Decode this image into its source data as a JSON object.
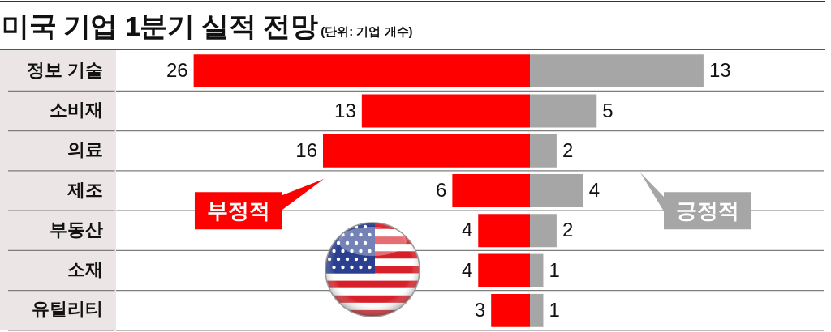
{
  "chart_data": [
    {
      "type": "bar",
      "orientation": "horizontal",
      "title": "미국 기업 1분기 실적 전망",
      "subtitle": "(단위: 기업 개수)",
      "categories": [
        "정보 기술",
        "소비재",
        "의료",
        "제조",
        "부동산",
        "소재",
        "유틸리티"
      ],
      "series": [
        {
          "name": "부정적",
          "color": "#ff0000",
          "values": [
            26,
            13,
            16,
            6,
            4,
            4,
            3
          ]
        }
      ],
      "data_labels": true,
      "xlim": [
        32,
        0
      ],
      "grid": "y",
      "tick_labels": "y"
    },
    {
      "type": "bar",
      "orientation": "horizontal",
      "categories": [
        null,
        null,
        null,
        null,
        null,
        null,
        null
      ],
      "series": [
        {
          "name": "긍정적",
          "color": "#a6a6a6",
          "values": [
            13,
            5,
            2,
            4,
            2,
            1,
            1
          ]
        }
      ],
      "data_labels": true,
      "xlim": [
        0,
        22
      ],
      "grid": "y",
      "tick_labels": false
    }
  ]
}
